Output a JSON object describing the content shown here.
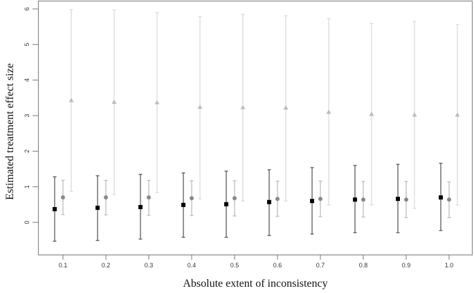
{
  "chart_data": {
    "type": "scatter",
    "subtype": "point-with-error-bars",
    "title": "",
    "xlabel": "Absolute extent of inconsistency",
    "ylabel": "Estimated treatment effect size",
    "categories": [
      "0.1",
      "0.2",
      "0.3",
      "0.4",
      "0.5",
      "0.6",
      "0.7",
      "0.8",
      "0.9",
      "1.0"
    ],
    "ylim": [
      -0.9,
      6.2
    ],
    "yticks": [
      0,
      1,
      2,
      3,
      4,
      5,
      6
    ],
    "grid": false,
    "legend": null,
    "series": [
      {
        "name": "series-1",
        "marker": "square",
        "marker_color": "#000000",
        "line_color": "#5a5a5a",
        "offset": -12,
        "estimate": [
          0.37,
          0.41,
          0.43,
          0.49,
          0.51,
          0.57,
          0.6,
          0.64,
          0.66,
          0.7
        ],
        "upper": [
          1.28,
          1.31,
          1.35,
          1.39,
          1.44,
          1.48,
          1.54,
          1.6,
          1.63,
          1.66
        ],
        "lower": [
          -0.53,
          -0.51,
          -0.47,
          -0.42,
          -0.42,
          -0.37,
          -0.33,
          -0.29,
          -0.29,
          -0.23
        ]
      },
      {
        "name": "series-2",
        "marker": "circle",
        "marker_color": "#888888",
        "line_color": "#bdbdbd",
        "offset": 0,
        "estimate": [
          0.7,
          0.7,
          0.7,
          0.68,
          0.68,
          0.66,
          0.66,
          0.64,
          0.64,
          0.64
        ],
        "upper": [
          1.18,
          1.18,
          1.18,
          1.17,
          1.17,
          1.16,
          1.16,
          1.15,
          1.15,
          1.14
        ],
        "lower": [
          0.22,
          0.21,
          0.2,
          0.19,
          0.18,
          0.17,
          0.16,
          0.15,
          0.13,
          0.13
        ]
      },
      {
        "name": "series-3",
        "marker": "triangle",
        "marker_color": "#bbbbbb",
        "line_color": "#dcdcdc",
        "offset": 12,
        "estimate": [
          3.43,
          3.38,
          3.37,
          3.24,
          3.23,
          3.22,
          3.1,
          3.04,
          3.02,
          3.02
        ],
        "upper": [
          5.98,
          5.97,
          5.9,
          5.79,
          5.85,
          5.81,
          5.73,
          5.59,
          5.65,
          5.56
        ],
        "lower": [
          0.87,
          0.78,
          0.84,
          0.66,
          0.6,
          0.6,
          0.49,
          0.49,
          0.39,
          0.49
        ]
      }
    ]
  }
}
